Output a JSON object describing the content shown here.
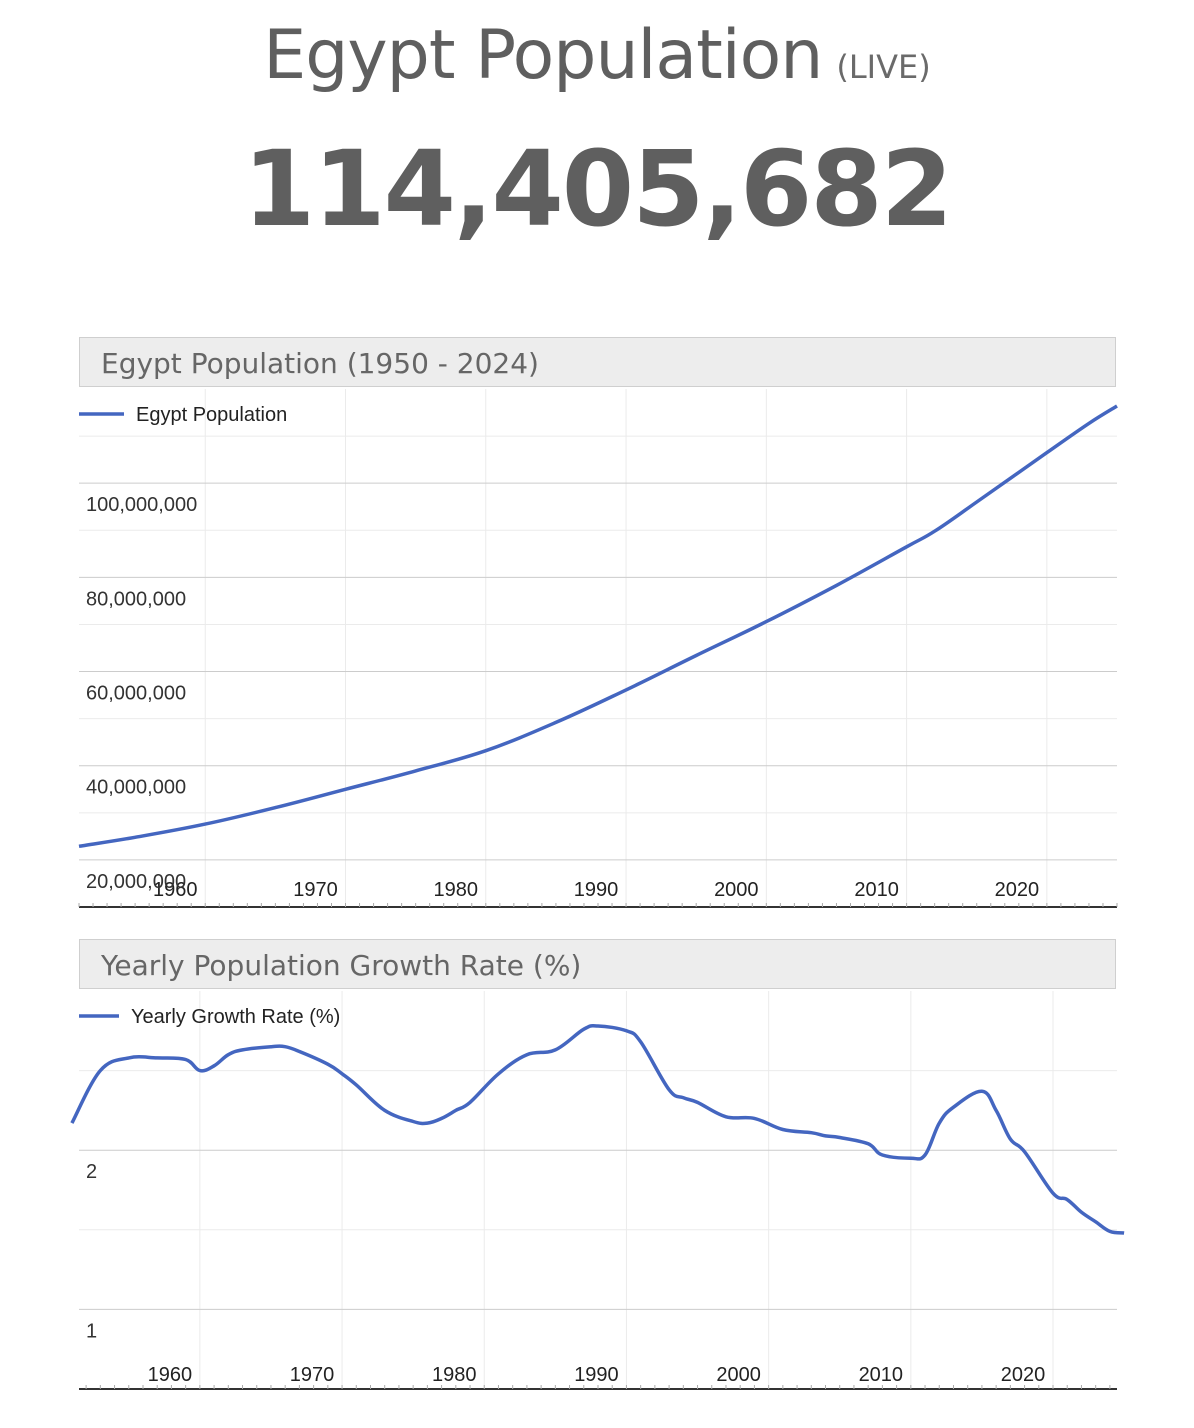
{
  "header": {
    "title": "Egypt Population",
    "live_label": "(LIVE)",
    "live_count": "114,405,682"
  },
  "chart_data": [
    {
      "type": "line",
      "title": "Egypt Population (1950 - 2024)",
      "series": [
        {
          "name": "Egypt Population",
          "color": "#4466c0",
          "x": [
            1951,
            1955,
            1960,
            1965,
            1970,
            1975,
            1980,
            1985,
            1990,
            1995,
            2000,
            2005,
            2010,
            2012,
            2015,
            2020,
            2023,
            2025
          ],
          "values": [
            22900000,
            24800000,
            27600000,
            31100000,
            35000000,
            38900000,
            43200000,
            49200000,
            56100000,
            63400000,
            70600000,
            78300000,
            86500000,
            89800000,
            96000000,
            106500000,
            112700000,
            116400000
          ]
        }
      ],
      "x_ticks": [
        "1960",
        "1970",
        "1980",
        "1990",
        "2000",
        "2010",
        "2020"
      ],
      "y_ticks": [
        "20,000,000",
        "40,000,000",
        "60,000,000",
        "80,000,000",
        "100,000,000"
      ],
      "xlim": [
        1951,
        2025
      ],
      "ylim": [
        10000000,
        120000000
      ],
      "grid": true,
      "legend": "top-left"
    },
    {
      "type": "line",
      "title": "Yearly Population Growth Rate (%)",
      "series": [
        {
          "name": "Yearly Growth Rate (%)",
          "color": "#4466c0",
          "x": [
            1951,
            1953,
            1955,
            1957,
            1959,
            1960,
            1961,
            1962,
            1963,
            1965,
            1966,
            1967,
            1969,
            1970,
            1971,
            1973,
            1975,
            1976,
            1977,
            1978,
            1979,
            1981,
            1983,
            1985,
            1987,
            1988,
            1990,
            1991,
            1993,
            1994,
            1995,
            1997,
            1999,
            2001,
            2003,
            2004,
            2005,
            2007,
            2008,
            2010,
            2011,
            2012,
            2013,
            2015,
            2016,
            2017,
            2018,
            2020,
            2021,
            2022,
            2023,
            2024,
            2025
          ],
          "values": [
            2.17,
            2.5,
            2.58,
            2.58,
            2.57,
            2.5,
            2.53,
            2.6,
            2.63,
            2.65,
            2.65,
            2.62,
            2.54,
            2.48,
            2.41,
            2.25,
            2.18,
            2.17,
            2.2,
            2.25,
            2.3,
            2.48,
            2.6,
            2.63,
            2.76,
            2.78,
            2.75,
            2.68,
            2.38,
            2.33,
            2.3,
            2.21,
            2.2,
            2.13,
            2.11,
            2.09,
            2.08,
            2.04,
            1.97,
            1.95,
            1.97,
            2.17,
            2.27,
            2.37,
            2.25,
            2.07,
            1.99,
            1.73,
            1.69,
            1.61,
            1.55,
            1.49,
            1.48
          ]
        }
      ],
      "x_ticks": [
        "1960",
        "1970",
        "1980",
        "1990",
        "2000",
        "2010",
        "2020"
      ],
      "y_ticks": [
        "1",
        "2"
      ],
      "xlim": [
        1951.5,
        2024.5
      ],
      "ylim": [
        0.5,
        3.0
      ],
      "grid": true,
      "legend": "top-left"
    }
  ]
}
